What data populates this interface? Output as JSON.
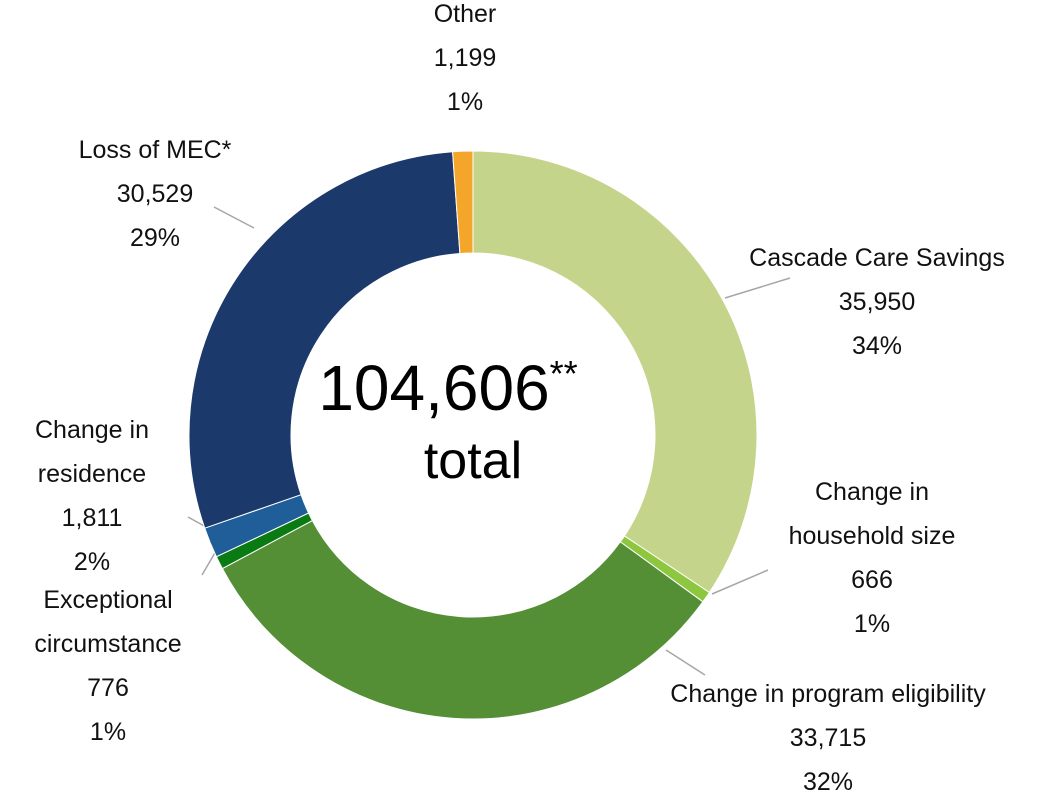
{
  "chart_data": {
    "type": "donut",
    "categories": [
      "Cascade Care Savings",
      "Change in household size",
      "Change in program eligibility",
      "Exceptional circumstance",
      "Change in residence",
      "Loss of MEC*",
      "Other"
    ],
    "values": [
      35950,
      666,
      33715,
      776,
      1811,
      30529,
      1199
    ],
    "value_labels": [
      "35,950",
      "666",
      "33,715",
      "776",
      "1,811",
      "30,529",
      "1,199"
    ],
    "percents": [
      34,
      1,
      32,
      1,
      2,
      29,
      1
    ],
    "percent_labels": [
      "34%",
      "1%",
      "32%",
      "1%",
      "2%",
      "29%",
      "1%"
    ],
    "colors": [
      "#c4d48b",
      "#8dc63f",
      "#548f35",
      "#0a7a12",
      "#1f5e98",
      "#1b396b",
      "#f4a62a"
    ],
    "total": {
      "value": 104606,
      "label": "104,606",
      "note": "**",
      "text": "total"
    }
  }
}
